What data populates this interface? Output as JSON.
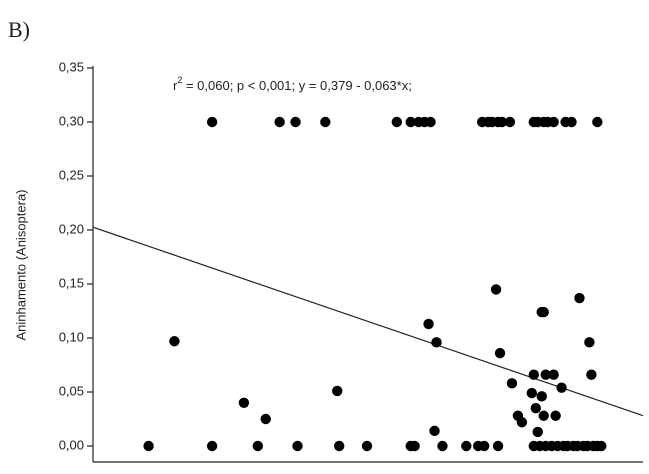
{
  "panel_label": "B)",
  "chart_data": {
    "type": "scatter",
    "ylabel": "Aninhamento (Anisoptera)",
    "annotation": {
      "parts": [
        "r",
        "2",
        " = 0,060; p < 0,001; y = 0,379 - 0,063*x;"
      ]
    },
    "regression": {
      "intercept": 0.379,
      "slope": -0.063,
      "color": "#222"
    },
    "xlim": [
      2.8,
      5.57
    ],
    "ylim": [
      0,
      0.35
    ],
    "yticks": [
      {
        "value": 0,
        "label": "0,00"
      },
      {
        "value": 0.05,
        "label": "0,05"
      },
      {
        "value": 0.1,
        "label": "0,10"
      },
      {
        "value": 0.15,
        "label": "0,15"
      },
      {
        "value": 0.2,
        "label": "0,20"
      },
      {
        "value": 0.25,
        "label": "0,25"
      },
      {
        "value": 0.3,
        "label": "0,30"
      },
      {
        "value": 0.35,
        "label": "0,35"
      }
    ],
    "series": [
      {
        "color": "#000",
        "x": [
          3.4,
          3.74,
          3.82,
          3.97,
          4.33,
          4.4,
          4.44,
          4.47,
          4.5,
          4.76,
          4.79,
          4.81,
          4.84,
          4.86,
          4.9,
          5.02,
          5.04,
          5.07,
          5.09,
          5.12,
          5.18,
          5.21,
          5.34,
          3.08,
          3.4,
          3.63,
          3.83,
          4.04,
          4.18,
          4.4,
          4.42,
          4.56,
          4.68,
          4.74,
          4.77,
          4.84,
          5.02,
          5.05,
          5.08,
          5.11,
          5.14,
          5.17,
          5.19,
          5.22,
          5.24,
          5.27,
          5.29,
          5.32,
          5.34,
          5.36,
          3.21,
          3.56,
          3.67,
          4.03,
          4.49,
          4.53,
          4.52,
          4.83,
          4.85,
          4.91,
          4.94,
          4.96,
          5.01,
          5.02,
          5.03,
          5.04,
          5.06,
          5.07,
          5.06,
          5.07,
          5.08,
          5.12,
          5.13,
          5.16,
          5.25,
          5.3,
          5.31
        ],
        "values": [
          0.3,
          0.3,
          0.3,
          0.3,
          0.3,
          0.3,
          0.3,
          0.3,
          0.3,
          0.3,
          0.3,
          0.3,
          0.3,
          0.3,
          0.3,
          0.3,
          0.3,
          0.3,
          0.3,
          0.3,
          0.3,
          0.3,
          0.3,
          0,
          0,
          0,
          0,
          0,
          0,
          0,
          0,
          0,
          0,
          0,
          0,
          0,
          0,
          0,
          0,
          0,
          0,
          0,
          0,
          0,
          0,
          0,
          0,
          0,
          0,
          0,
          0.097,
          0.04,
          0.025,
          0.051,
          0.113,
          0.096,
          0.014,
          0.145,
          0.086,
          0.058,
          0.028,
          0.022,
          0.049,
          0.066,
          0.035,
          0.013,
          0.124,
          0.124,
          0.046,
          0.028,
          0.066,
          0.066,
          0.028,
          0.054,
          0.137,
          0.096,
          0.066
        ]
      }
    ]
  }
}
